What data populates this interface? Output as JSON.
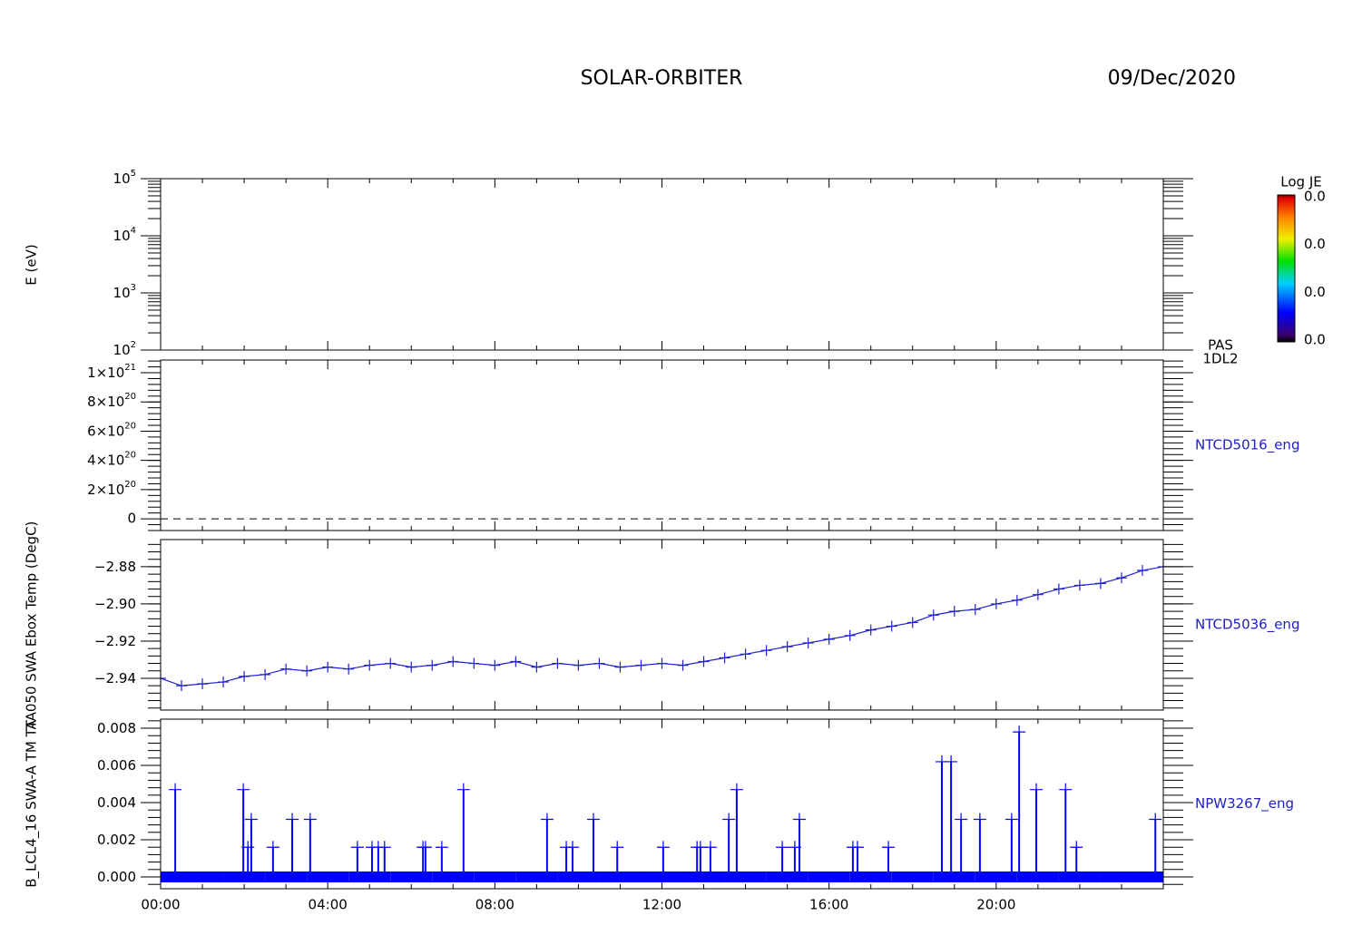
{
  "header": {
    "title": "SOLAR-ORBITER",
    "date": "09/Dec/2020"
  },
  "xaxis": {
    "xlim": [
      0,
      24
    ],
    "xticks": [
      {
        "value": 0,
        "label": "00:00"
      },
      {
        "value": 4,
        "label": "04:00"
      },
      {
        "value": 8,
        "label": "08:00"
      },
      {
        "value": 12,
        "label": "12:00"
      },
      {
        "value": 16,
        "label": "16:00"
      },
      {
        "value": 20,
        "label": "20:00"
      }
    ],
    "xminorticks": [
      1,
      2,
      3,
      5,
      6,
      7,
      9,
      10,
      11,
      13,
      14,
      15,
      17,
      18,
      19,
      21,
      22,
      23
    ]
  },
  "chart_data": [
    {
      "type": "heatmap",
      "ylabel": "E (eV)",
      "log_y": true,
      "ylim": [
        100,
        100000
      ],
      "yticks": [
        {
          "value": 100,
          "label": "10",
          "exponent": "2"
        },
        {
          "value": 1000,
          "label": "10",
          "exponent": "3"
        },
        {
          "value": 10000,
          "label": "10",
          "exponent": "4"
        },
        {
          "value": 100000,
          "label": "10",
          "exponent": "5"
        }
      ],
      "right_label": [
        "PAS",
        "1DL2"
      ],
      "colorbar": {
        "label": "Log JE",
        "ticks": [
          "0.0",
          "0.0",
          "0.0",
          "0.0"
        ]
      }
    },
    {
      "type": "dashed",
      "ylim": [
        -8e+19,
        1.087e+21
      ],
      "yticks": [
        0,
        {
          "value": 2e+20,
          "label": "2×10",
          "exponent": "20"
        },
        {
          "value": 4e+20,
          "label": "4×10",
          "exponent": "20"
        },
        {
          "value": 6e+20,
          "label": "6×10",
          "exponent": "20"
        },
        {
          "value": 8e+20,
          "label": "8×10",
          "exponent": "20"
        },
        {
          "value": 1e+21,
          "label": "1×10",
          "exponent": "21"
        }
      ],
      "series": [
        {
          "name": "NTCD5016_eng",
          "color": "#000000",
          "x": [
            0,
            24
          ],
          "values": [
            0,
            0
          ]
        }
      ]
    },
    {
      "type": "line",
      "ylabel": "TA050 SWA Ebox Temp (DegC)",
      "ylim": [
        -2.9571,
        -2.8654
      ],
      "yticks": [
        {
          "value": -2.94,
          "label": "−2.94"
        },
        {
          "value": -2.92,
          "label": "−2.92"
        },
        {
          "value": -2.9,
          "label": "−2.90"
        },
        {
          "value": -2.88,
          "label": "−2.88"
        }
      ],
      "series": [
        {
          "name": "NTCD5036_eng",
          "color": "#2020d0",
          "x": [
            0,
            0.5,
            1,
            1.5,
            2,
            2.5,
            3,
            3.5,
            4,
            4.5,
            5,
            5.5,
            6,
            6.5,
            7,
            7.5,
            8,
            8.5,
            9,
            9.5,
            10,
            10.5,
            11,
            11.5,
            12,
            12.5,
            13,
            13.5,
            14,
            14.5,
            15,
            15.5,
            16,
            16.5,
            17,
            17.5,
            18,
            18.5,
            19,
            19.5,
            20,
            20.5,
            21,
            21.5,
            22,
            22.5,
            23,
            23.5,
            24
          ],
          "values": [
            -2.94,
            -2.944,
            -2.943,
            -2.942,
            -2.939,
            -2.938,
            -2.935,
            -2.936,
            -2.934,
            -2.935,
            -2.933,
            -2.932,
            -2.934,
            -2.933,
            -2.931,
            -2.932,
            -2.933,
            -2.931,
            -2.934,
            -2.932,
            -2.933,
            -2.932,
            -2.934,
            -2.933,
            -2.932,
            -2.933,
            -2.931,
            -2.929,
            -2.927,
            -2.925,
            -2.923,
            -2.921,
            -2.919,
            -2.917,
            -2.914,
            -2.912,
            -2.91,
            -2.906,
            -2.904,
            -2.903,
            -2.9,
            -2.898,
            -2.895,
            -2.892,
            -2.89,
            -2.889,
            -2.886,
            -2.882,
            -2.88
          ]
        }
      ]
    },
    {
      "type": "stem",
      "ylabel": "B_LCL4_16 SWA-A TM TA",
      "ylim": [
        -0.000634,
        0.00849
      ],
      "yticks": [
        {
          "value": 0,
          "label": "0.000"
        },
        {
          "value": 0.002,
          "label": "0.002"
        },
        {
          "value": 0.004,
          "label": "0.004"
        },
        {
          "value": 0.006,
          "label": "0.006"
        },
        {
          "value": 0.008,
          "label": "0.008"
        }
      ],
      "series": [
        {
          "name": "NPW3267_eng",
          "color": "#0000ff",
          "x": [
            0,
            0.35,
            1,
            1.98,
            2,
            2.09,
            2.17,
            2.69,
            3,
            3.15,
            3.58,
            4,
            4.71,
            5,
            5.06,
            5.21,
            5.36,
            6,
            6.28,
            6.34,
            6.73,
            7,
            7.25,
            8,
            9,
            9.25,
            9.71,
            9.86,
            10,
            10.36,
            10.93,
            11,
            12,
            12.03,
            12.84,
            12.92,
            13,
            13.16,
            13.6,
            13.79,
            14,
            14.88,
            15,
            15.18,
            15.29,
            16,
            16.57,
            16.68,
            17,
            17.42,
            18,
            18.7,
            18.92,
            19,
            19.16,
            19.61,
            20,
            20.37,
            20.55,
            20.96,
            21,
            21.66,
            21.92,
            22,
            23,
            23.81,
            24
          ],
          "values": [
            0,
            0.0047,
            0,
            0.0047,
            0,
            0.0016,
            0.0031,
            0.0016,
            0,
            0.0031,
            0.0031,
            0,
            0.0016,
            0,
            0.0016,
            0.0016,
            0.0016,
            0,
            0.0016,
            0.0016,
            0.0016,
            0,
            0.0047,
            0,
            0,
            0.0031,
            0.0016,
            0.0016,
            0,
            0.0031,
            0.0016,
            0,
            0,
            0.0016,
            0.0016,
            0.0016,
            0,
            0.0016,
            0.0031,
            0.0047,
            0,
            0.0016,
            0,
            0.0016,
            0.0031,
            0,
            0.0016,
            0.0016,
            0,
            0.0016,
            0,
            0.0062,
            0.0062,
            0,
            0.0031,
            0.0031,
            0,
            0.0031,
            0.0078,
            0.0047,
            0,
            0.0047,
            0.0016,
            0,
            0,
            0.0031,
            0
          ]
        }
      ]
    }
  ]
}
